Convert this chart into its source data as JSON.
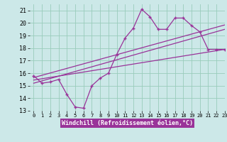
{
  "xlabel": "Windchill (Refroidissement éolien,°C)",
  "background_color": "#cce8e8",
  "grid_color": "#99ccbb",
  "line_color": "#993399",
  "x": [
    0,
    1,
    2,
    3,
    4,
    5,
    6,
    7,
    8,
    9,
    10,
    11,
    12,
    13,
    14,
    15,
    16,
    17,
    18,
    19,
    20,
    21,
    22,
    23
  ],
  "y_main": [
    15.8,
    15.2,
    15.3,
    15.5,
    14.3,
    13.3,
    13.2,
    15.0,
    15.6,
    16.0,
    17.5,
    18.8,
    19.6,
    21.1,
    20.5,
    19.5,
    19.5,
    20.4,
    20.4,
    19.8,
    19.3,
    17.9,
    17.9,
    17.9
  ],
  "trend1_start": 15.65,
  "trend1_end": 19.85,
  "trend2_start": 15.2,
  "trend2_end": 19.5,
  "trend3_start": 15.45,
  "trend3_end": 17.9,
  "ylim": [
    13,
    21.5
  ],
  "xlim": [
    -0.5,
    23
  ],
  "yticks": [
    13,
    14,
    15,
    16,
    17,
    18,
    19,
    20,
    21
  ],
  "xticks": [
    0,
    1,
    2,
    3,
    4,
    5,
    6,
    7,
    8,
    9,
    10,
    11,
    12,
    13,
    14,
    15,
    16,
    17,
    18,
    19,
    20,
    21,
    22,
    23
  ],
  "xtick_labels": [
    "0",
    "1",
    "2",
    "3",
    "4",
    "5",
    "6",
    "7",
    "8",
    "9",
    "10",
    "11",
    "12",
    "13",
    "14",
    "15",
    "16",
    "17",
    "18",
    "19",
    "20",
    "21",
    "22",
    "23"
  ]
}
